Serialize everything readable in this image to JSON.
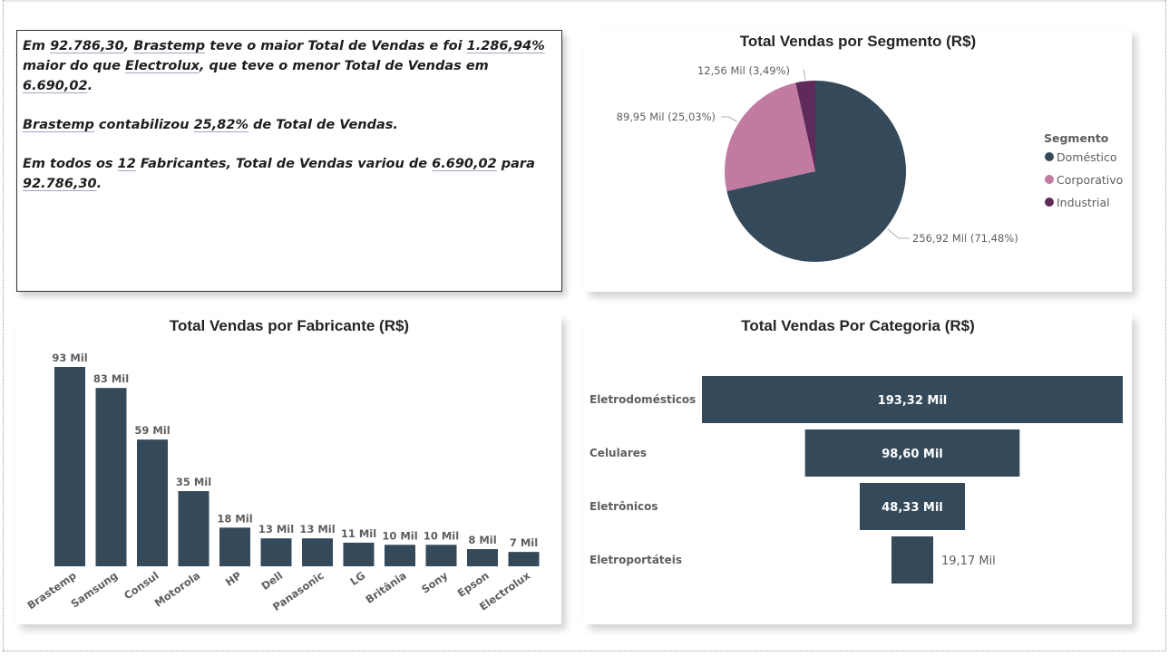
{
  "narrative": {
    "p1": [
      {
        "t": "Em ",
        "hl": false
      },
      {
        "t": "92.786,30",
        "hl": true
      },
      {
        "t": ", ",
        "hl": false
      },
      {
        "t": "Brastemp",
        "hl": true
      },
      {
        "t": " teve o maior Total de Vendas e foi ",
        "hl": false
      },
      {
        "t": "1.286,94%",
        "hl": true
      },
      {
        "t": " maior do que ",
        "hl": false
      },
      {
        "t": "Electrolux",
        "hl": true
      },
      {
        "t": ", que teve o menor Total de Vendas em ",
        "hl": false
      },
      {
        "t": "6.690,02",
        "hl": true
      },
      {
        "t": ".",
        "hl": false
      }
    ],
    "p2": [
      {
        "t": "Brastemp",
        "hl": true
      },
      {
        "t": " contabilizou ",
        "hl": false
      },
      {
        "t": "25,82%",
        "hl": true
      },
      {
        "t": " de Total de Vendas.",
        "hl": false
      }
    ],
    "p3": [
      {
        "t": "Em todos os ",
        "hl": false
      },
      {
        "t": "12",
        "hl": true
      },
      {
        "t": " Fabricantes, Total de Vendas variou de ",
        "hl": false
      },
      {
        "t": "6.690,02",
        "hl": true
      },
      {
        "t": " para ",
        "hl": false
      },
      {
        "t": "92.786,30",
        "hl": true
      },
      {
        "t": ".",
        "hl": false
      }
    ]
  },
  "colors": {
    "bar": "#34495a",
    "domestico": "#34495a",
    "corporativo": "#c27ba0",
    "industrial": "#5e2a5a",
    "funnel": "#34495a"
  },
  "chart_data": [
    {
      "type": "pie",
      "title": "Total Vendas por Segmento (R$)",
      "legend_title": "Segmento",
      "legend_position": "right",
      "categories": [
        "Doméstico",
        "Corporativo",
        "Industrial"
      ],
      "values": [
        256.92,
        89.95,
        12.56
      ],
      "data_labels": [
        "256,92 Mil (71,48%)",
        "89,95 Mil (25,03%)",
        "12,56 Mil (3,49%)"
      ]
    },
    {
      "type": "bar",
      "title": "Total Vendas por Fabricante (R$)",
      "categories": [
        "Brastemp",
        "Samsung",
        "Consul",
        "Motorola",
        "HP",
        "Dell",
        "Panasonic",
        "LG",
        "Britânia",
        "Sony",
        "Epson",
        "Electrolux"
      ],
      "values": [
        92.79,
        83,
        59,
        35,
        18,
        13,
        13,
        11,
        10,
        10,
        8,
        6.69
      ],
      "data_labels": [
        "93 Mil",
        "83 Mil",
        "59 Mil",
        "35 Mil",
        "18 Mil",
        "13 Mil",
        "13 Mil",
        "11 Mil",
        "10 Mil",
        "10 Mil",
        "8 Mil",
        "7 Mil"
      ],
      "xlabel": "",
      "ylabel": "",
      "grid": false
    },
    {
      "type": "funnel",
      "title": "Total Vendas Por Categoria (R$)",
      "categories": [
        "Eletrodomésticos",
        "Celulares",
        "Eletrônicos",
        "Eletroportáteis"
      ],
      "values": [
        193.32,
        98.6,
        48.33,
        19.17
      ],
      "data_labels": [
        "193,32 Mil",
        "98,60 Mil",
        "48,33 Mil",
        "19,17 Mil"
      ]
    }
  ]
}
